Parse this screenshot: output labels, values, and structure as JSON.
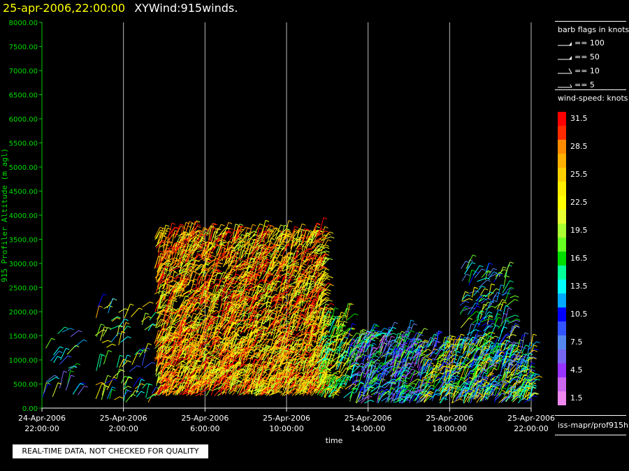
{
  "header": {
    "date": "25-apr-2006,22:00:00",
    "product": "XYWind:915winds."
  },
  "qc_note": "REAL-TIME DATA, NOT CHECKED FOR QUALITY",
  "legend": {
    "barb_title": "barb flags in knots",
    "barb_items": [
      {
        "label": "== 100",
        "kind": "flag"
      },
      {
        "label": "== 50",
        "kind": "flag"
      },
      {
        "label": "== 10",
        "kind": "full"
      },
      {
        "label": "== 5",
        "kind": "half"
      }
    ],
    "speed_title": "wind-speed: knots",
    "speed_scale": [
      {
        "label": "31.5",
        "color": "#ff0000"
      },
      {
        "label": "",
        "color": "#ff2a00"
      },
      {
        "label": "28.5",
        "color": "#ff8c00"
      },
      {
        "label": "",
        "color": "#ffb000"
      },
      {
        "label": "25.5",
        "color": "#ffd000"
      },
      {
        "label": "",
        "color": "#ffee00"
      },
      {
        "label": "22.5",
        "color": "#ffff00"
      },
      {
        "label": "",
        "color": "#e6ff33"
      },
      {
        "label": "19.5",
        "color": "#aaff33"
      },
      {
        "label": "",
        "color": "#66ff22"
      },
      {
        "label": "16.5",
        "color": "#00dd00"
      },
      {
        "label": "",
        "color": "#00ff99"
      },
      {
        "label": "13.5",
        "color": "#00ffff"
      },
      {
        "label": "",
        "color": "#00aaff"
      },
      {
        "label": "10.5",
        "color": "#0000ff"
      },
      {
        "label": "",
        "color": "#3355ff"
      },
      {
        "label": "7.5",
        "color": "#5588ee"
      },
      {
        "label": "",
        "color": "#7766ee"
      },
      {
        "label": "4.5",
        "color": "#9933ff"
      },
      {
        "label": "",
        "color": "#cc66ee"
      },
      {
        "label": "1.5",
        "color": "#ee88ee"
      }
    ],
    "source": "iss-mapr/prof915h"
  },
  "chart_data": {
    "type": "scatter",
    "title": "",
    "xlabel": "time",
    "ylabel": "915 Profiler Altitude (m agl)",
    "ylim": [
      0,
      8000
    ],
    "xlim_hours": [
      -2,
      22
    ],
    "y_ticks": [
      "0.00",
      "500.00",
      "1000.00",
      "1500.00",
      "2000.00",
      "2500.00",
      "3000.00",
      "3500.00",
      "4000.00",
      "4500.00",
      "5000.00",
      "5500.00",
      "6000.00",
      "6500.00",
      "7000.00",
      "7500.00",
      "8000.00"
    ],
    "x_ticks": [
      {
        "date": "24-Apr-2006",
        "time": "22:00:00"
      },
      {
        "date": "25-Apr-2006",
        "time": "2:00:00"
      },
      {
        "date": "25-Apr-2006",
        "time": "6:00:00"
      },
      {
        "date": "25-Apr-2006",
        "time": "10:00:00"
      },
      {
        "date": "25-Apr-2006",
        "time": "14:00:00"
      },
      {
        "date": "25-Apr-2006",
        "time": "18:00:00"
      },
      {
        "date": "25-Apr-2006",
        "time": "22:00:00"
      }
    ],
    "x_tick_hours": [
      -2,
      2,
      6,
      10,
      14,
      18,
      22
    ],
    "grid": "vertical lines at each time tick",
    "series": [
      {
        "hours": [
          -2,
          0
        ],
        "alt_min": 200,
        "alt_max": 1700,
        "speed_min": 5,
        "speed_max": 21,
        "density": 25
      },
      {
        "hours": [
          0.6,
          3.5
        ],
        "alt_min": 100,
        "alt_max": 2100,
        "speed_min": 8,
        "speed_max": 27,
        "density": 75
      },
      {
        "hours": [
          3.5,
          11.8
        ],
        "alt_min": 250,
        "alt_max": 3600,
        "speed_min": 19,
        "speed_max": 33,
        "density": 2700
      },
      {
        "hours": [
          11.5,
          13
        ],
        "alt_min": 200,
        "alt_max": 1900,
        "speed_min": 13,
        "speed_max": 27,
        "density": 160
      },
      {
        "hours": [
          13,
          16.5
        ],
        "alt_min": 100,
        "alt_max": 1500,
        "speed_min": 3,
        "speed_max": 20,
        "density": 380
      },
      {
        "hours": [
          16.5,
          22
        ],
        "alt_min": 100,
        "alt_max": 1300,
        "speed_min": 6,
        "speed_max": 27,
        "density": 520
      },
      {
        "hours": [
          18.5,
          21
        ],
        "alt_min": 800,
        "alt_max": 2900,
        "speed_min": 6,
        "speed_max": 22,
        "density": 160
      }
    ]
  }
}
